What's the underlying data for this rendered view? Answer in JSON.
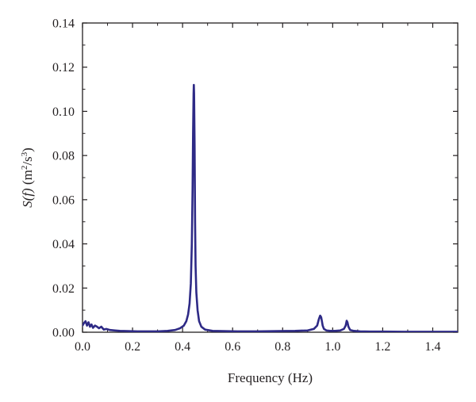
{
  "chart_data": {
    "type": "line",
    "title": "",
    "xlabel": "Frequency (Hz)",
    "ylabel": {
      "func": "S(f)",
      "unit_open": " (m",
      "unit_sup1": "2",
      "unit_mid": "/s",
      "unit_sup2": "3",
      "unit_close": ")"
    },
    "xlim": [
      0,
      1.5
    ],
    "ylim": [
      0,
      0.14
    ],
    "x_ticks": [
      0.0,
      0.2,
      0.4,
      0.6,
      0.8,
      1.0,
      1.2,
      1.4
    ],
    "x_tick_labels": [
      "0.0",
      "0.2",
      "0.4",
      "0.6",
      "0.8",
      "1.0",
      "1.2",
      "1.4"
    ],
    "y_ticks": [
      0.0,
      0.02,
      0.04,
      0.06,
      0.08,
      0.1,
      0.12,
      0.14
    ],
    "y_tick_labels": [
      "0.00",
      "0.02",
      "0.04",
      "0.06",
      "0.08",
      "0.10",
      "0.12",
      "0.14"
    ],
    "grid": false,
    "legend": "none",
    "line_color": "#2e2a86",
    "series": [
      {
        "x": [
          0.0,
          0.005,
          0.012,
          0.018,
          0.024,
          0.03,
          0.036,
          0.042,
          0.05,
          0.058,
          0.066,
          0.075,
          0.085,
          0.095,
          0.11,
          0.13,
          0.15,
          0.18,
          0.22,
          0.26,
          0.3,
          0.34,
          0.37,
          0.39,
          0.405,
          0.415,
          0.422,
          0.428,
          0.433,
          0.437,
          0.44,
          0.442,
          0.444,
          0.445,
          0.446,
          0.448,
          0.45,
          0.452,
          0.455,
          0.46,
          0.466,
          0.475,
          0.49,
          0.52,
          0.56,
          0.62,
          0.7,
          0.78,
          0.85,
          0.9,
          0.925,
          0.938,
          0.945,
          0.95,
          0.954,
          0.957,
          0.96,
          0.965,
          0.975,
          0.99,
          1.01,
          1.03,
          1.045,
          1.052,
          1.056,
          1.059,
          1.063,
          1.07,
          1.085,
          1.11,
          1.15,
          1.2,
          1.3,
          1.4,
          1.5
        ],
        "y": [
          0.003,
          0.004,
          0.005,
          0.003,
          0.0045,
          0.0025,
          0.0035,
          0.002,
          0.003,
          0.0025,
          0.0018,
          0.0025,
          0.0012,
          0.0015,
          0.001,
          0.0008,
          0.0006,
          0.0005,
          0.0004,
          0.0004,
          0.0004,
          0.0006,
          0.001,
          0.0018,
          0.003,
          0.005,
          0.008,
          0.013,
          0.022,
          0.04,
          0.065,
          0.09,
          0.108,
          0.112,
          0.108,
          0.085,
          0.05,
          0.03,
          0.018,
          0.01,
          0.005,
          0.0025,
          0.0012,
          0.0006,
          0.0005,
          0.0004,
          0.0004,
          0.0005,
          0.0006,
          0.0008,
          0.0015,
          0.003,
          0.006,
          0.0075,
          0.0068,
          0.005,
          0.003,
          0.0015,
          0.0008,
          0.0006,
          0.0006,
          0.0008,
          0.0015,
          0.003,
          0.0052,
          0.0045,
          0.0025,
          0.001,
          0.0006,
          0.0004,
          0.0003,
          0.0003,
          0.0002,
          0.0002,
          0.0002
        ]
      }
    ]
  }
}
